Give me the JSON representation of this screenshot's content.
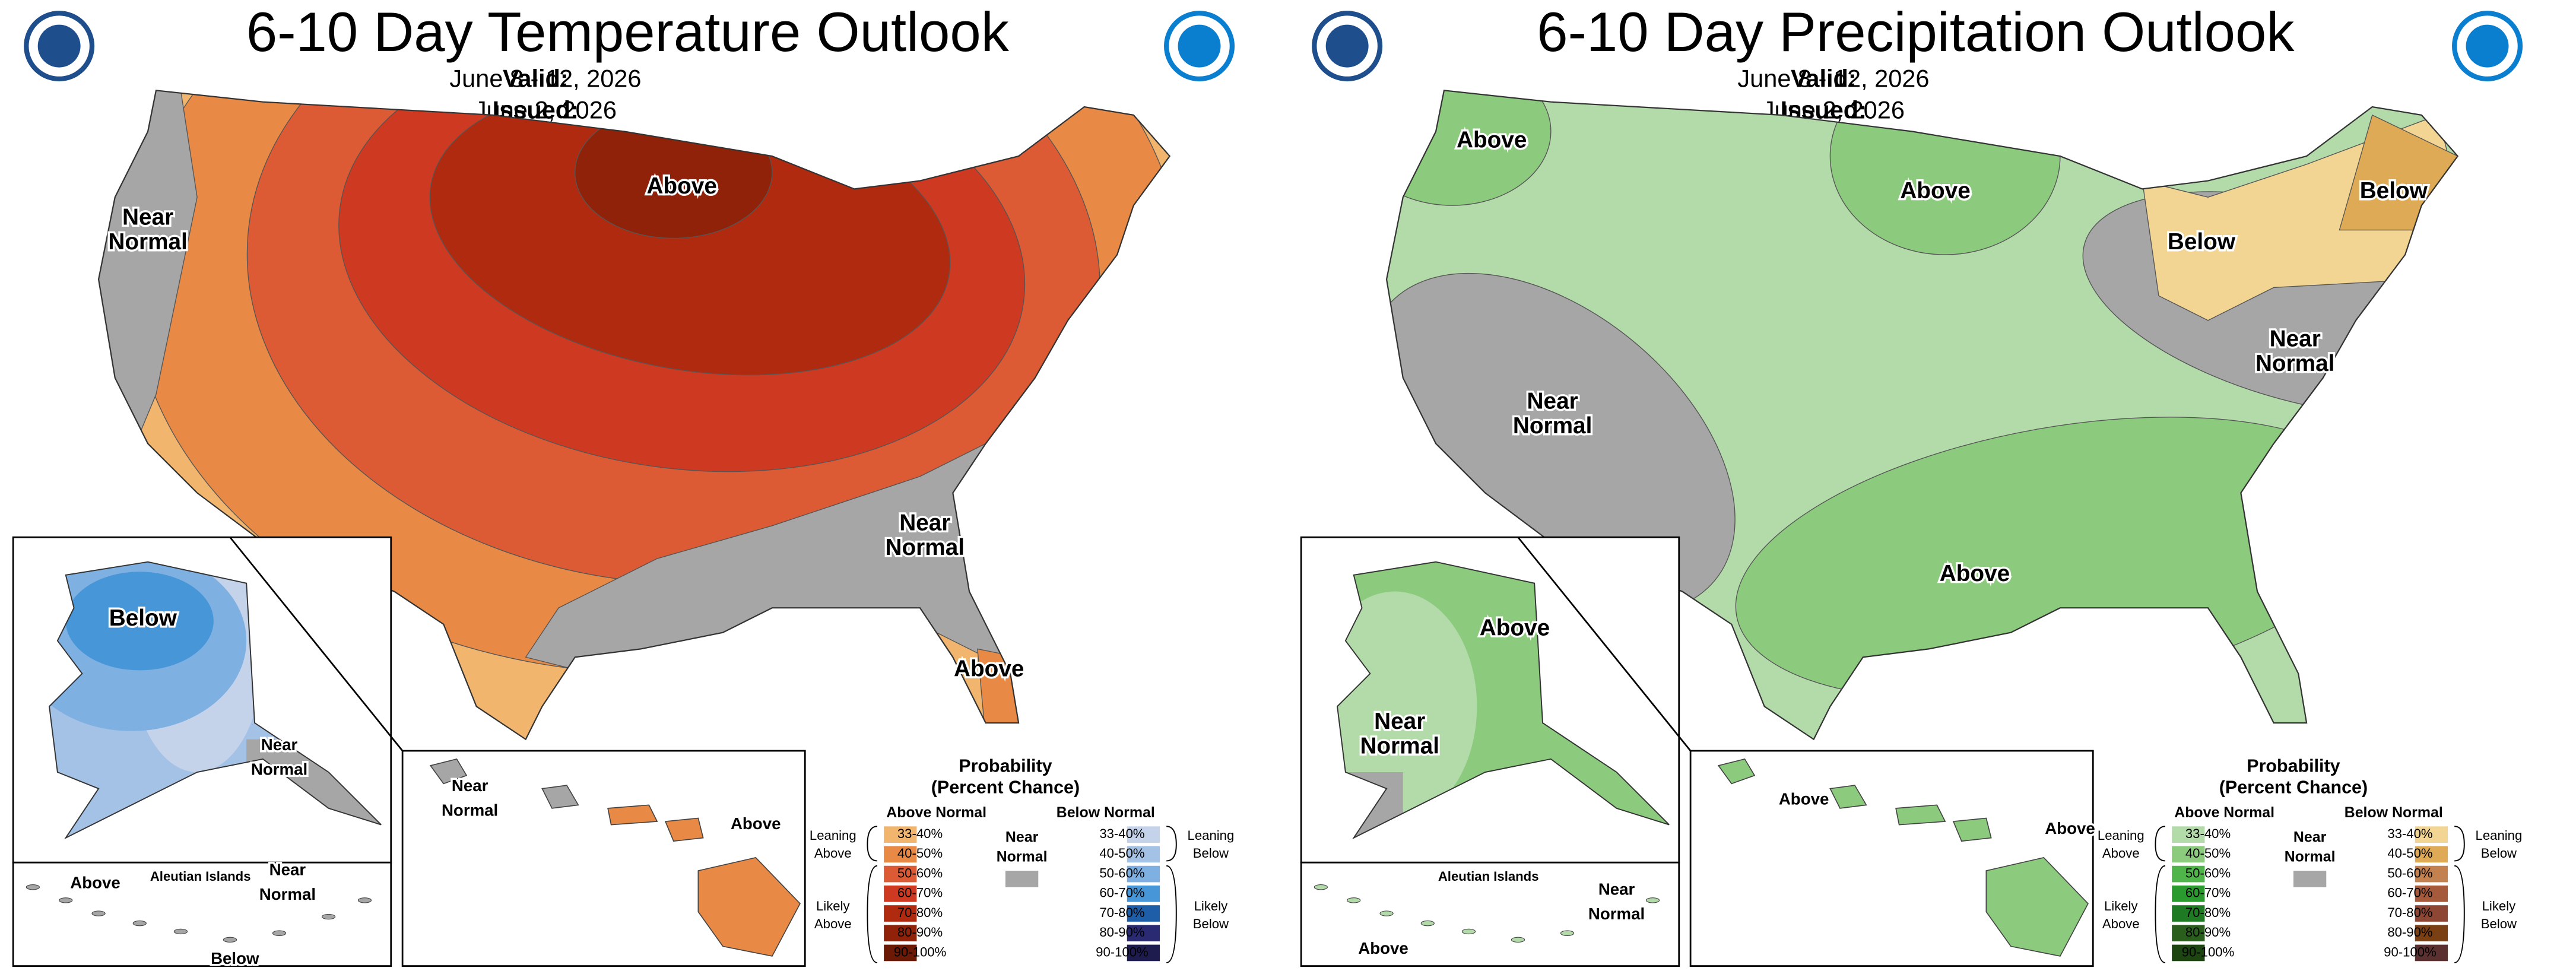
{
  "panels": [
    {
      "title": "6-10 Day Temperature Outlook",
      "valid_label": "Valid:",
      "valid": "June 8 - 12, 2026",
      "issued_label": "Issued:",
      "issued": "June 2, 2026",
      "map_labels": [
        [
          "Above"
        ],
        [
          "Near",
          "Normal"
        ],
        [
          "Near",
          "Normal"
        ],
        [
          "Above"
        ],
        [
          "Below"
        ],
        [
          "Near",
          "Normal"
        ],
        [
          "Above"
        ],
        [
          "Near",
          "Normal"
        ],
        [
          "Below"
        ],
        [
          "Near",
          "Normal"
        ],
        [
          "Above"
        ]
      ],
      "aleutian_label": "Aleutian Islands",
      "legend": {
        "title": [
          "Probability",
          "(Percent Chance)"
        ],
        "above_header": "Above Normal",
        "below_header": "Below Normal",
        "near": [
          "Near",
          "Normal"
        ],
        "leaning_above": [
          "Leaning",
          "Above"
        ],
        "likely_above": [
          "Likely",
          "Above"
        ],
        "leaning_below": [
          "Leaning",
          "Below"
        ],
        "likely_below": [
          "Likely",
          "Below"
        ],
        "ranges": [
          "33-40%",
          "40-50%",
          "50-60%",
          "60-70%",
          "70-80%",
          "80-90%",
          "90-100%"
        ],
        "above_colors": [
          "#f1b56e",
          "#e88a46",
          "#dc5a34",
          "#cd3a21",
          "#b02a10",
          "#8f2208",
          "#6a1a05"
        ],
        "below_colors": [
          "#c4d3ea",
          "#a4c2e6",
          "#7eb0e2",
          "#4796d8",
          "#1e5ea8",
          "#2a2a72",
          "#1e1b4e"
        ],
        "near_color": "#a6a6a6"
      }
    },
    {
      "title": "6-10 Day Precipitation Outlook",
      "valid_label": "Valid:",
      "valid": "June 8 - 12, 2026",
      "issued_label": "Issued:",
      "issued": "June 2, 2026",
      "map_labels": [
        [
          "Above"
        ],
        [
          "Above"
        ],
        [
          "Below"
        ],
        [
          "Below"
        ],
        [
          "Near",
          "Normal"
        ],
        [
          "Near",
          "Normal"
        ],
        [
          "Above"
        ],
        [
          "Above"
        ],
        [
          "Near",
          "Normal"
        ],
        [
          "Near",
          "Normal"
        ],
        [
          "Above"
        ],
        [
          "Above"
        ],
        [
          "Above"
        ]
      ],
      "aleutian_label": "Aleutian Islands",
      "legend": {
        "title": [
          "Probability",
          "(Percent Chance)"
        ],
        "above_header": "Above Normal",
        "below_header": "Below Normal",
        "near": [
          "Near",
          "Normal"
        ],
        "leaning_above": [
          "Leaning",
          "Above"
        ],
        "likely_above": [
          "Likely",
          "Above"
        ],
        "leaning_below": [
          "Leaning",
          "Below"
        ],
        "likely_below": [
          "Likely",
          "Below"
        ],
        "ranges": [
          "33-40%",
          "40-50%",
          "50-60%",
          "60-70%",
          "70-80%",
          "80-90%",
          "90-100%"
        ],
        "above_colors": [
          "#b3dbaa",
          "#8ccb7e",
          "#4fb54a",
          "#2a9a2f",
          "#1e7b23",
          "#2a5e1c",
          "#1c4512"
        ],
        "below_colors": [
          "#f2d593",
          "#deaa55",
          "#c38150",
          "#a55b3b",
          "#8c4633",
          "#7a3f13",
          "#5a3030"
        ],
        "near_color": "#a6a6a6"
      }
    }
  ]
}
